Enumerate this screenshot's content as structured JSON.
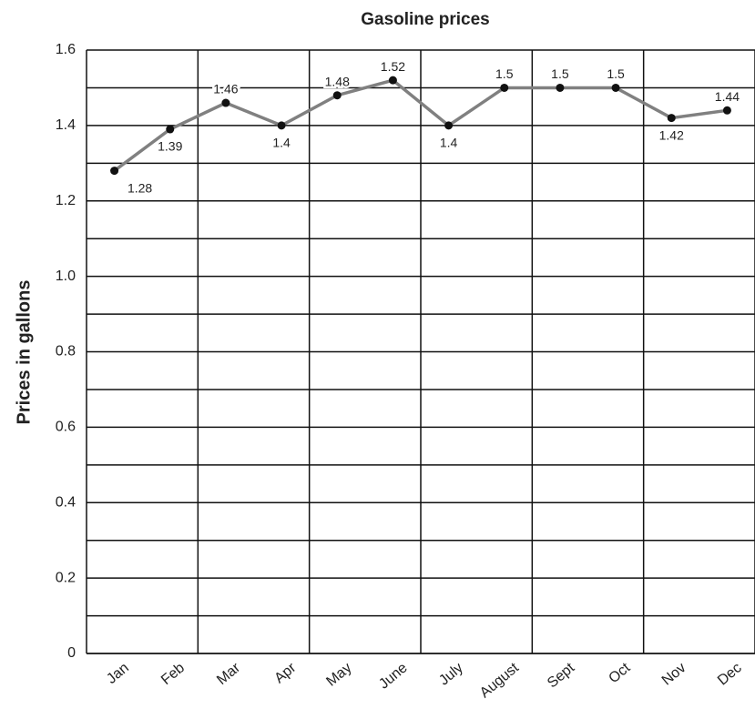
{
  "chart_data": {
    "type": "line",
    "title": "Gasoline prices",
    "y_label": "Prices in gallons",
    "categories": [
      "Jan",
      "Feb",
      "Mar",
      "Apr",
      "May",
      "June",
      "July",
      "August",
      "Sept",
      "Oct",
      "Nov",
      "Dec"
    ],
    "series": [
      {
        "name": "Gasoline prices",
        "color": "#808080",
        "values": [
          1.28,
          1.39,
          1.46,
          1.4,
          1.48,
          1.52,
          1.4,
          1.5,
          1.5,
          1.5,
          1.42,
          1.44
        ]
      }
    ],
    "ylim": [
      0,
      1.6
    ],
    "yticks": [
      0,
      0.2,
      0.4,
      0.6,
      0.8,
      {
        "value": 1,
        "label": "1.0"
      },
      1.2,
      1.4,
      1.6
    ],
    "minor_yticks": [
      0.1,
      0.3,
      0.5,
      0.7,
      0.9,
      1.1,
      1.3,
      1.5
    ],
    "grid": true
  }
}
